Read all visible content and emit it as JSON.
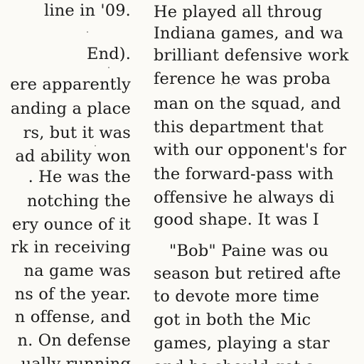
{
  "left_column": {
    "lines": [
      "line in '09.",
      "End).",
      "ere apparently",
      "anding a place",
      "rs, but it was",
      "ad ability won",
      ". He was the",
      "notching the",
      "ery ounce of it",
      "rk in receiving",
      "na game was",
      "ns of the year.",
      "n offense, and",
      "n. On defense",
      "ually running"
    ]
  },
  "right_column": {
    "lines": [
      "He played all throug",
      "Indiana games, and wa",
      "brilliant defensive work",
      "ference he was proba",
      "man on the squad, and",
      "this department that",
      "with our opponent's for",
      "the forward-pass with",
      "offensive he always di",
      "good shape. It was I",
      "\"Bob\" Paine was ou",
      "season but retired afte",
      "to devote more time",
      "got in both the Mic",
      "games, playing a star",
      "and he should get a"
    ]
  }
}
